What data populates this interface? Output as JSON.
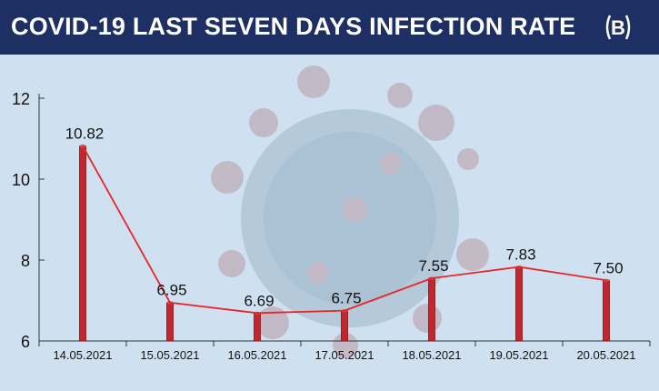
{
  "header": {
    "title": "COVID-19 LAST SEVEN DAYS INFECTION RATE",
    "logo_letter": "B",
    "background_color": "#1e2f63"
  },
  "chart_data": {
    "type": "line",
    "title": "COVID-19 LAST SEVEN DAYS INFECTION RATE",
    "xlabel": "",
    "ylabel": "",
    "categories": [
      "14.05.2021",
      "15.05.2021",
      "16.05.2021",
      "17.05.2021",
      "18.05.2021",
      "19.05.2021",
      "20.05.2021"
    ],
    "values": [
      10.82,
      6.95,
      6.69,
      6.75,
      7.55,
      7.83,
      7.5
    ],
    "data_labels": [
      "10.82",
      "6.95",
      "6.69",
      "6.75",
      "7.55",
      "7.83",
      "7.50"
    ],
    "ylim": [
      6,
      12
    ],
    "yticks": [
      6,
      8,
      10,
      12
    ],
    "line_color": "#e8262a",
    "bar_color": "#c4262b",
    "grid": false,
    "legend": "none"
  }
}
